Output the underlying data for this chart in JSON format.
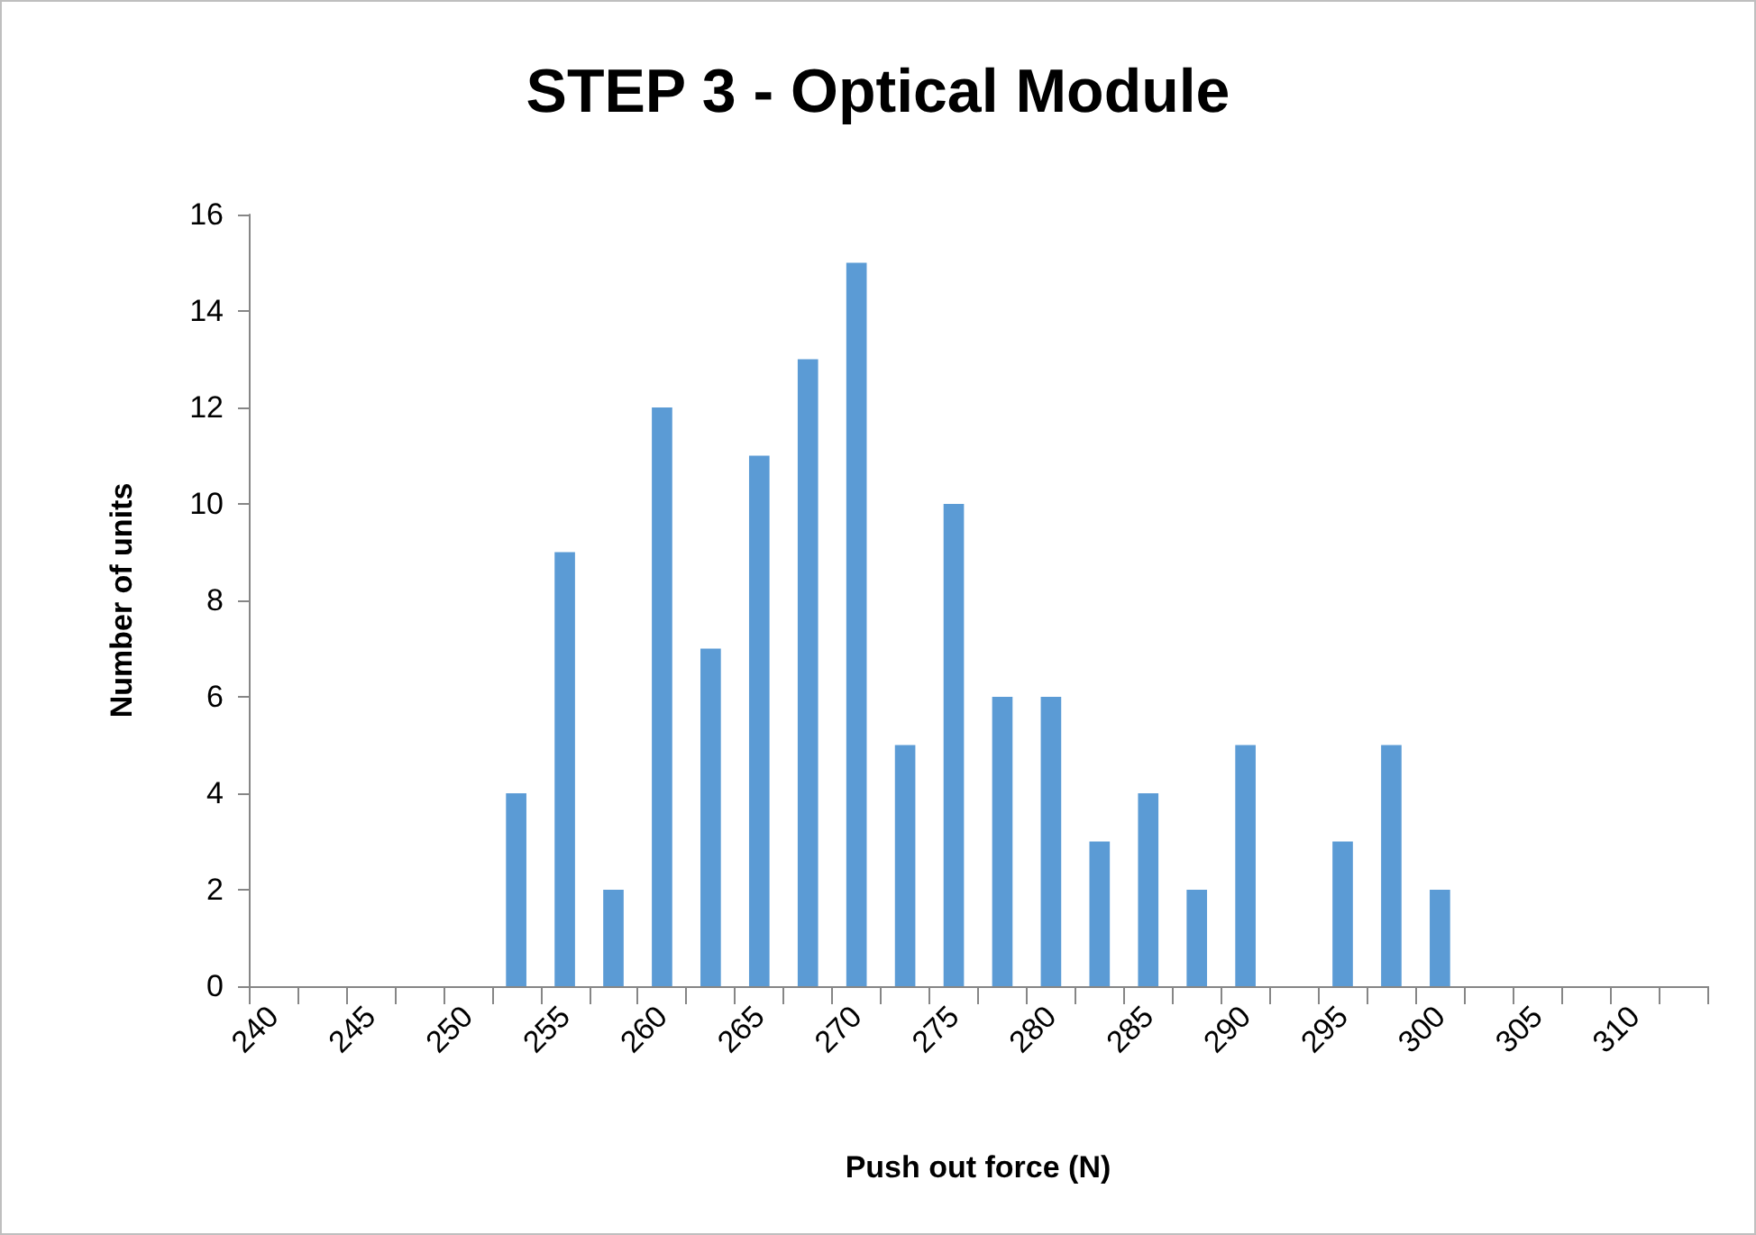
{
  "chart_data": {
    "type": "bar",
    "title": "STEP 3 - Optical Module",
    "xlabel": "Push out force (N)",
    "ylabel": "Number of units",
    "categories": [
      "240",
      null,
      "245",
      null,
      "250",
      null,
      "255",
      null,
      "260",
      null,
      "265",
      null,
      "270",
      null,
      "275",
      null,
      "280",
      null,
      "285",
      null,
      "290",
      null,
      "295",
      null,
      "300",
      null,
      "305",
      null,
      "310",
      null
    ],
    "values": [
      0,
      0,
      0,
      0,
      0,
      4,
      9,
      2,
      12,
      7,
      11,
      13,
      15,
      5,
      10,
      6,
      6,
      3,
      4,
      2,
      5,
      0,
      3,
      5,
      2,
      0,
      0,
      0,
      0,
      0
    ],
    "color": "#5b9bd5",
    "ylim": [
      0,
      16
    ],
    "yticks": [
      0,
      2,
      4,
      6,
      8,
      10,
      12,
      14,
      16
    ]
  }
}
